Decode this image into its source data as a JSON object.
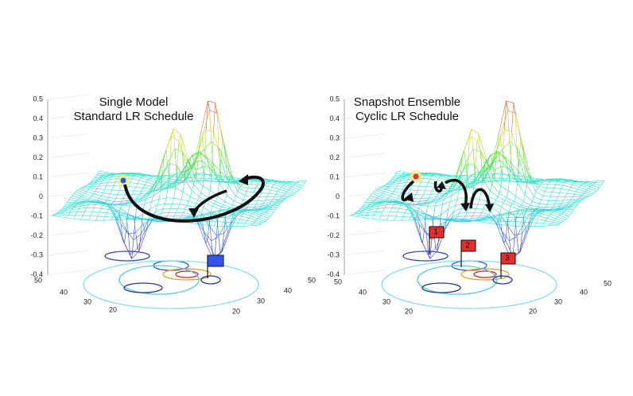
{
  "panels": [
    {
      "title": [
        "Single Model",
        "Standard LR Schedule"
      ],
      "z_ticks": [
        "0.5",
        "0.4",
        "0.3",
        "0.2",
        "0.1",
        "0",
        "-0.1",
        "-0.2",
        "-0.3",
        "-0.4"
      ],
      "left_ticks": [
        "50",
        "40",
        "30",
        "20"
      ],
      "right_ticks": [
        "20",
        "30",
        "40",
        "50"
      ]
    },
    {
      "title": [
        "Snapshot Ensemble",
        "Cyclic LR Schedule"
      ],
      "z_ticks": [
        "0.5",
        "0.4",
        "0.3",
        "0.2",
        "0.1",
        "0",
        "-0.1",
        "-0.2",
        "-0.3",
        "-0.4"
      ],
      "left_ticks": [
        "50",
        "40",
        "30",
        "20"
      ],
      "right_ticks": [
        "20",
        "30",
        "40",
        "50"
      ],
      "flags": [
        "1",
        "2",
        "3"
      ]
    }
  ]
}
